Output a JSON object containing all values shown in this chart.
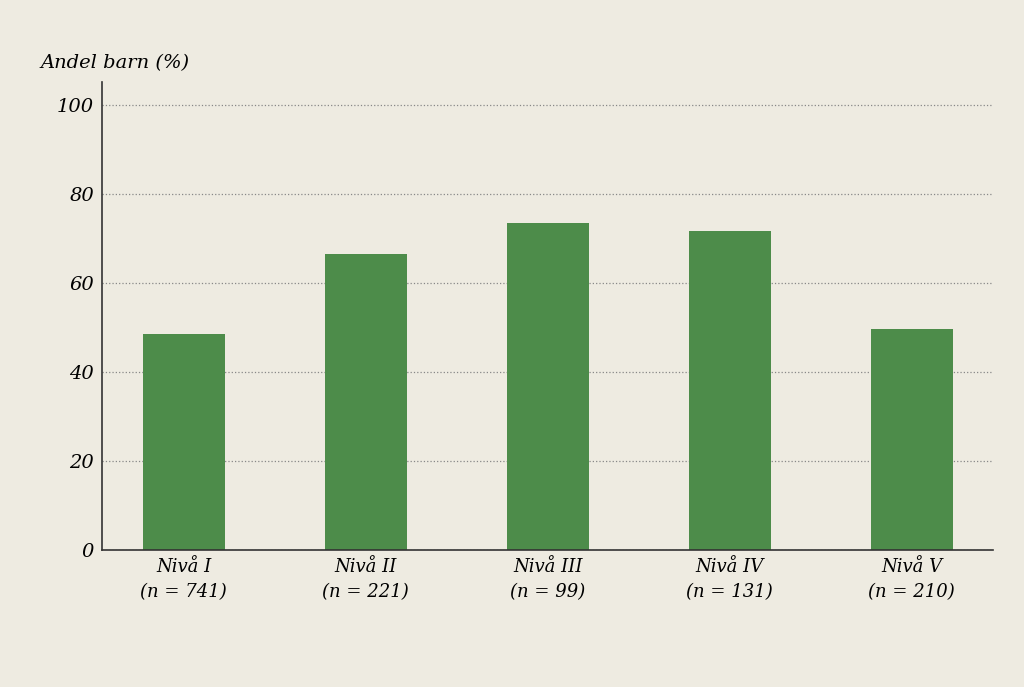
{
  "categories": [
    "Nivå I\n(n = 741)",
    "Nivå II\n(n = 221)",
    "Nivå III\n(n = 99)",
    "Nivå IV\n(n = 131)",
    "Nivå V\n(n = 210)"
  ],
  "values": [
    48.5,
    66.5,
    73.5,
    71.5,
    49.5
  ],
  "bar_color": "#4d8c4a",
  "ylabel": "Andel barn (%)",
  "ylim": [
    0,
    105
  ],
  "yticks": [
    0,
    20,
    40,
    60,
    80,
    100
  ],
  "background_color": "#eeebe1",
  "bar_width": 0.45,
  "ylabel_fontsize": 14,
  "tick_fontsize": 14,
  "xtick_fontsize": 13
}
